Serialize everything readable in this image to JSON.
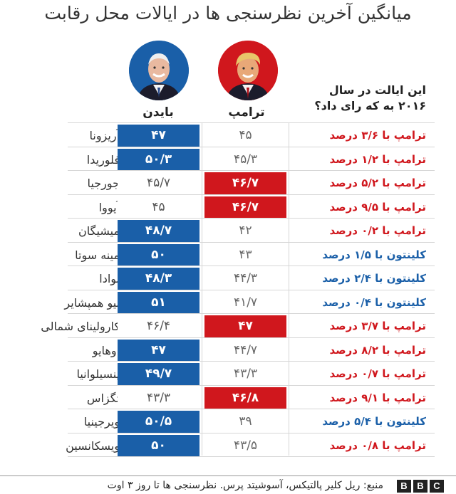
{
  "title": "میانگین آخرین نظرسنجی ها در ایالات محل رقابت",
  "candidates": {
    "biden_label": "بایدن",
    "trump_label": "ترامپ",
    "biden_color": "#1a5fa8",
    "trump_color": "#d0171d"
  },
  "question": "این ایالت در سال ۲۰۱۶ به که رای داد؟",
  "rows": [
    {
      "state": "آریزونا",
      "biden": "۴۷",
      "trump": "۴۵",
      "leader": "biden",
      "result": "ترامپ با ۳/۶ درصد",
      "winner2016": "trump"
    },
    {
      "state": "فلوریدا",
      "biden": "۵۰/۳",
      "trump": "۴۵/۳",
      "leader": "biden",
      "result": "ترامپ با ۱/۲ درصد",
      "winner2016": "trump"
    },
    {
      "state": "جورجیا",
      "biden": "۴۵/۷",
      "trump": "۴۶/۷",
      "leader": "trump",
      "result": "ترامپ با ۵/۲ درصد",
      "winner2016": "trump"
    },
    {
      "state": "آیووا",
      "biden": "۴۵",
      "trump": "۴۶/۷",
      "leader": "trump",
      "result": "ترامپ با ۹/۵ درصد",
      "winner2016": "trump"
    },
    {
      "state": "میشیگان",
      "biden": "۴۸/۷",
      "trump": "۴۲",
      "leader": "biden",
      "result": "ترامپ با ۰/۲ درصد",
      "winner2016": "trump"
    },
    {
      "state": "مینه سوتا",
      "biden": "۵۰",
      "trump": "۴۳",
      "leader": "biden",
      "result": "کلینتون با ۱/۵ درصد",
      "winner2016": "clinton"
    },
    {
      "state": "نوادا",
      "biden": "۴۸/۳",
      "trump": "۴۴/۳",
      "leader": "biden",
      "result": "کلینتون با ۲/۴ درصد",
      "winner2016": "clinton"
    },
    {
      "state": "نیو همپشایر",
      "biden": "۵۱",
      "trump": "۴۱/۷",
      "leader": "biden",
      "result": "کلینتون با ۰/۴ درصد",
      "winner2016": "clinton"
    },
    {
      "state": "کارولینای شمالی",
      "biden": "۴۶/۴",
      "trump": "۴۷",
      "leader": "trump",
      "result": "ترامپ با ۳/۷ درصد",
      "winner2016": "trump"
    },
    {
      "state": "اوهایو",
      "biden": "۴۷",
      "trump": "۴۴/۷",
      "leader": "biden",
      "result": "ترامپ با ۸/۲ درصد",
      "winner2016": "trump"
    },
    {
      "state": "پنسیلوانیا",
      "biden": "۴۹/۷",
      "trump": "۴۳/۳",
      "leader": "biden",
      "result": "ترامپ با ۰/۷ درصد",
      "winner2016": "trump"
    },
    {
      "state": "تگزاس",
      "biden": "۴۳/۳",
      "trump": "۴۶/۸",
      "leader": "trump",
      "result": "ترامپ با ۹/۱ درصد",
      "winner2016": "trump"
    },
    {
      "state": "ویرجینیا",
      "biden": "۵۰/۵",
      "trump": "۳۹",
      "leader": "biden",
      "result": "کلینتون با ۵/۴ درصد",
      "winner2016": "clinton"
    },
    {
      "state": "ویسکانسین",
      "biden": "۵۰",
      "trump": "۴۳/۵",
      "leader": "biden",
      "result": "ترامپ با ۰/۸ درصد",
      "winner2016": "trump"
    }
  ],
  "source": "منبع: ریل کلیر پالتیکس، آسوشیتد پرس. نظرسنجی ها تا روز ۳ اوت",
  "logo": {
    "letters": [
      "B",
      "B",
      "C"
    ]
  },
  "colors": {
    "clinton_text": "#1a5fa8",
    "trump_text": "#d0171d"
  },
  "chart_data": {
    "type": "table",
    "title": "میانگین آخرین نظرسنجی ها در ایالات محل رقابت",
    "columns": [
      "بایدن",
      "ترامپ",
      "این ایالت در سال ۲۰۱۶ به که رای داد؟"
    ],
    "categories": [
      "آریزونا",
      "فلوریدا",
      "جورجیا",
      "آیووا",
      "میشیگان",
      "مینه سوتا",
      "نوادا",
      "نیو همپشایر",
      "کارولینای شمالی",
      "اوهایو",
      "پنسیلوانیا",
      "تگزاس",
      "ویرجینیا",
      "ویسکانسین"
    ],
    "series": [
      {
        "name": "بایدن",
        "values": [
          47,
          50.3,
          45.7,
          45,
          48.7,
          50,
          48.3,
          51,
          46.4,
          47,
          49.7,
          43.3,
          50.5,
          50
        ]
      },
      {
        "name": "ترامپ",
        "values": [
          45,
          45.3,
          46.7,
          46.7,
          42,
          43,
          44.3,
          41.7,
          47,
          44.7,
          43.3,
          46.8,
          39,
          43.5
        ]
      }
    ]
  }
}
